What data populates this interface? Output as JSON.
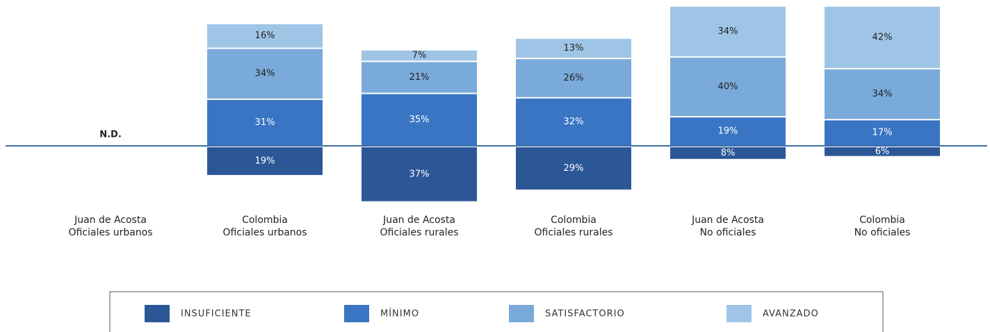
{
  "chart_data": {
    "type": "diverging-stacked-bar",
    "categories": [
      "Juan de Acosta\nOficiales urbanos",
      "Colombia\nOficiales urbanos",
      "Juan de Acosta\nOficiales rurales",
      "Colombia\nOficiales rurales",
      "Juan de Acosta\nNo oficiales",
      "Colombia\nNo oficiales"
    ],
    "annotation": "N.D.",
    "series": [
      {
        "name": "INSUFICIENTE",
        "color": "#2b5797",
        "direction": "down",
        "values": [
          null,
          19,
          37,
          29,
          8,
          6
        ],
        "value_labels": [
          null,
          "19%",
          "37%",
          "29%",
          "8%",
          "6%"
        ]
      },
      {
        "name": "MÍNIMO",
        "color": "#3a75c4",
        "direction": "up",
        "values": [
          null,
          31,
          35,
          32,
          19,
          17
        ],
        "value_labels": [
          null,
          "31%",
          "35%",
          "32%",
          "19%",
          "17%"
        ]
      },
      {
        "name": "SATISFACTORIO",
        "color": "#7aaad9",
        "direction": "up",
        "values": [
          null,
          34,
          21,
          26,
          40,
          34
        ],
        "value_labels": [
          null,
          "34%",
          "21%",
          "26%",
          "40%",
          "34%"
        ]
      },
      {
        "name": "AVANZADO",
        "color": "#9fc5e6",
        "direction": "up",
        "values": [
          null,
          16,
          7,
          13,
          34,
          42
        ],
        "value_labels": [
          null,
          "16%",
          "7%",
          "13%",
          "34%",
          "42%"
        ]
      }
    ]
  }
}
